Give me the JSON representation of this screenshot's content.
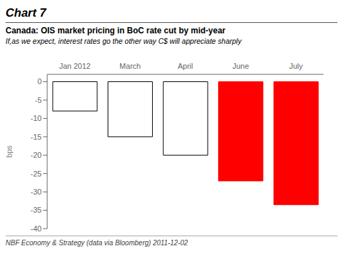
{
  "chart_data": {
    "type": "bar",
    "title": "Canada: OIS market pricing in BoC rate cut by mid-year",
    "subtitle": "If,as we expect, interest rates go the other way C$ will appreciate sharply",
    "annotations": [
      "Chart 7",
      "NBF Economy & Strategy (data via Bloomberg) 2011-12-02"
    ],
    "categories": [
      "Jan 2012",
      "March",
      "April",
      "June",
      "July"
    ],
    "values": [
      -8,
      -15,
      -20,
      -27,
      -33.5
    ],
    "colors": [
      "#ffffff",
      "#ffffff",
      "#ffffff",
      "#ff0000",
      "#ff0000"
    ],
    "ylabel": "bps",
    "ylim": [
      -40,
      2
    ],
    "yticks": [
      0,
      -5,
      -10,
      -15,
      -20,
      -25,
      -30,
      -35,
      -40
    ],
    "grid": false
  }
}
